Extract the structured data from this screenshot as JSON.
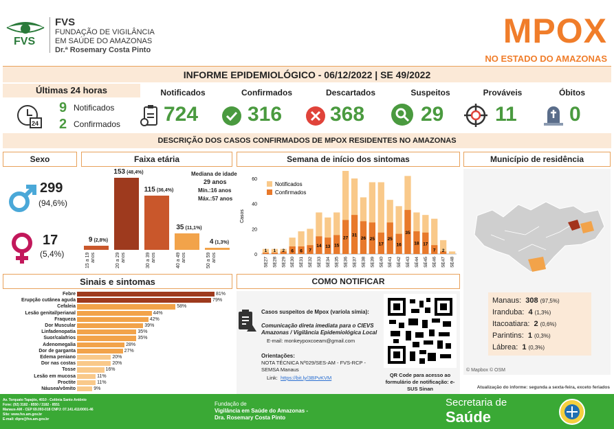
{
  "header": {
    "logo_abbr": "FVS",
    "logo_line1": "FUNDAÇÃO DE VIGILÂNCIA",
    "logo_line2": "EM SAÚDE DO AMAZONAS",
    "logo_line3": "Dr.ª Rosemary Costa Pinto",
    "title": "MPOX",
    "subtitle": "NO ESTADO DO AMAZONAS"
  },
  "report_title": "INFORME EPIDEMIOLÓGICO - 06/12/2022 | SE 49/2022",
  "last24": {
    "label": "Últimas 24 horas",
    "notified_value": "9",
    "notified_label": "Notificados",
    "confirmed_value": "2",
    "confirmed_label": "Confirmados",
    "clock_badge": "24"
  },
  "kpis": [
    {
      "label": "Notificados",
      "value": "724",
      "icon": "clipboard-phone-icon"
    },
    {
      "label": "Confirmados",
      "value": "316",
      "icon": "check-circle-icon"
    },
    {
      "label": "Descartados",
      "value": "368",
      "icon": "x-circle-icon"
    },
    {
      "label": "Suspeitos",
      "value": "29",
      "icon": "magnifier-icon"
    },
    {
      "label": "Prováveis",
      "value": "11",
      "icon": "target-icon"
    },
    {
      "label": "Óbitos",
      "value": "0",
      "icon": "tombstone-icon"
    }
  ],
  "section_title": "DESCRIÇÃO DOS CASOS CONFIRMADOS DE MPOX RESIDENTES NO AMAZONAS",
  "sexo": {
    "title": "Sexo",
    "male_value": "299",
    "male_pct": "(94,6%)",
    "female_value": "17",
    "female_pct": "(5,4%)",
    "male_color": "#4aa8d8",
    "female_color": "#c2185b"
  },
  "faixa": {
    "title": "Faixa etária",
    "median_label": "Mediana de idade",
    "median_value": "29 anos",
    "min": "Mín.:16 anos",
    "max": "Máx.:57 anos",
    "groups": [
      {
        "label": "15 a 19 anos",
        "value": 9,
        "text": "9",
        "pct": "(2,8%)",
        "color": "#c9572b"
      },
      {
        "label": "20 a 29 anos",
        "value": 153,
        "text": "153",
        "pct": "(48,4%)",
        "color": "#9e3a1e"
      },
      {
        "label": "30 a 39 anos",
        "value": 115,
        "text": "115",
        "pct": "(36,4%)",
        "color": "#c9572b"
      },
      {
        "label": "40 a 49 anos",
        "value": 35,
        "text": "35",
        "pct": "(11,1%)",
        "color": "#f2a34a"
      },
      {
        "label": "50 a 59 anos",
        "value": 4,
        "text": "4",
        "pct": "(1,3%)",
        "color": "#f2a34a"
      }
    ]
  },
  "semana": {
    "title": "Semana de início dos sintomas",
    "ylabel": "Casos",
    "ymax": 60,
    "yticks": [
      "0",
      "20",
      "40",
      "60"
    ],
    "legend": [
      {
        "label": "Notificados",
        "color": "#f9c98a"
      },
      {
        "label": "Confirmados",
        "color": "#e8792b"
      }
    ],
    "weeks": [
      "SE27",
      "SE28",
      "SE29",
      "SE30",
      "SE31",
      "SE32",
      "SE33",
      "SE34",
      "SE35",
      "SE36",
      "SE37",
      "SE38",
      "SE39",
      "SE40",
      "SE41",
      "SE42",
      "SE43",
      "SE44",
      "SE45",
      "SE46",
      "SE47",
      "SE48"
    ],
    "notificados": [
      4,
      4,
      4,
      13,
      18,
      20,
      33,
      29,
      33,
      66,
      60,
      45,
      57,
      57,
      43,
      38,
      62,
      33,
      31,
      28,
      11,
      2
    ],
    "confirmados": [
      1,
      1,
      2,
      6,
      6,
      7,
      14,
      13,
      15,
      27,
      31,
      26,
      25,
      17,
      25,
      16,
      35,
      18,
      17,
      7,
      2,
      0
    ],
    "conf_labels": [
      "1",
      "1",
      "2",
      "6",
      "6",
      "7",
      "14",
      "13",
      "15",
      "27",
      "31",
      "26",
      "25",
      "17",
      "25",
      "16",
      "35",
      "18",
      "17",
      "7",
      "2",
      ""
    ]
  },
  "municipio": {
    "title": "Município de residência",
    "attribution": "© Mapbox © OSM",
    "items": [
      {
        "name": "Manaus:",
        "value": "308",
        "pct": "(97,5%)"
      },
      {
        "name": "Iranduba:",
        "value": "4",
        "pct": "(1,3%)"
      },
      {
        "name": "Itacoatiara:",
        "value": "2",
        "pct": "(0,6%)"
      },
      {
        "name": "Parintins:",
        "value": "1",
        "pct": "(0,3%)"
      },
      {
        "name": "Lábrea:",
        "value": "1",
        "pct": "(0,3%)"
      }
    ]
  },
  "sinais": {
    "title": "Sinais e sintomas",
    "max": 81,
    "color": "#c9572b",
    "color_light": "#f2a34a",
    "items": [
      {
        "label": "Febre",
        "value": 81,
        "text": "81%"
      },
      {
        "label": "Erupção cutânea aguda",
        "value": 79,
        "text": "79%"
      },
      {
        "label": "Cefaleia",
        "value": 58,
        "text": "58%"
      },
      {
        "label": "Lesão genital/perianal",
        "value": 44,
        "text": "44%"
      },
      {
        "label": "Fraqueza",
        "value": 42,
        "text": "42%"
      },
      {
        "label": "Dor Muscular",
        "value": 39,
        "text": "39%"
      },
      {
        "label": "Linfadenopatia",
        "value": 35,
        "text": "35%"
      },
      {
        "label": "Suor/calafrios",
        "value": 35,
        "text": "35%"
      },
      {
        "label": "Adenomegalia",
        "value": 28,
        "text": "28%"
      },
      {
        "label": "Dor de garganta",
        "value": 27,
        "text": "27%"
      },
      {
        "label": "Edema peniano",
        "value": 20,
        "text": "20%"
      },
      {
        "label": "Dor nas costas",
        "value": 20,
        "text": "20%"
      },
      {
        "label": "Tosse",
        "value": 16,
        "text": "16%"
      },
      {
        "label": "Lesão em mucosa",
        "value": 11,
        "text": "11%"
      },
      {
        "label": "Proctite",
        "value": 11,
        "text": "11%"
      },
      {
        "label": "Náusea/vômito",
        "value": 9,
        "text": "9%"
      }
    ]
  },
  "notificar": {
    "title": "COMO NOTIFICAR",
    "heading": "Casos suspeitos de Mpox (varíola símia):",
    "comm": "Comunicação direta imediata para o CIEVS Amazonas / Vigilância Epidemiológica Local",
    "email": "E-mail: monkeypoxcoeam@gmail.com",
    "orient": "Orientações:",
    "nota": "NOTA TÉCNICA Nº029/SES-AM - FVS-RCP - SEMSA Manaus",
    "link_label": "Link:",
    "link": "https://bit.ly/3BPvKVM",
    "qr_caption": "QR Code para acesso ao formulário de notificação: e-SUS Sinan"
  },
  "update_note": "Atualização do informe: segunda a sexta-feira, exceto feriados",
  "footer": {
    "address": [
      "Av. Torquato Tapajós, 4010 - Colônia Santo Antônio",
      "Fone: (92) 3182 - 8550 / 3182 - 8551",
      "Manaus-AM - CEP 69.093-018 CNPJ: 07.141.411/0001-46",
      "Site: www.fvs.am.gov.br",
      "E-mail: dipre@fvs.am.gov.br"
    ],
    "center_l1": "Fundação de",
    "center_l2": "Vigilância em Saúde do Amazonas -",
    "center_l3": "Dra. Rosemary Costa Pinto",
    "sec_l1": "Secretaria de",
    "sec_l2": "Saúde",
    "bg": "#3aa935"
  }
}
